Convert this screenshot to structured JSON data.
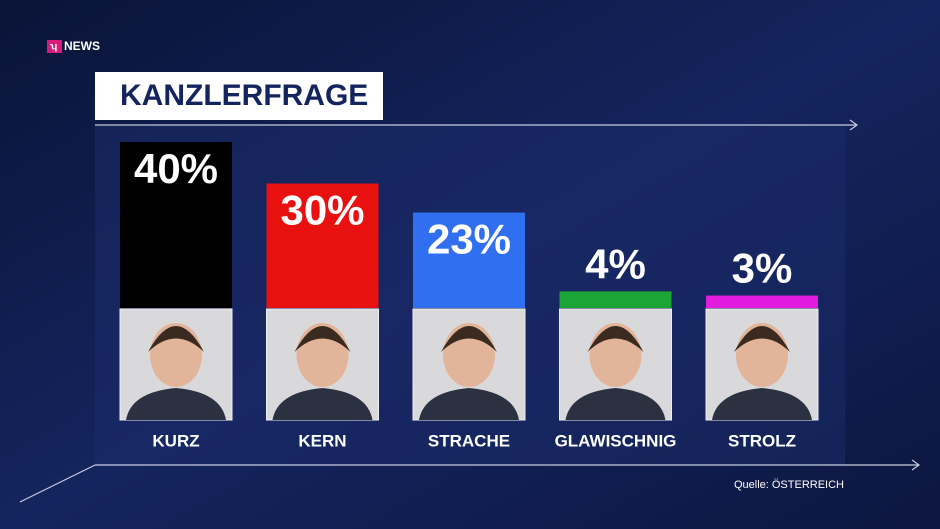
{
  "brand": "NEWS",
  "chart_data": {
    "type": "bar",
    "title": "KANZLERFRAGE",
    "categories": [
      "KURZ",
      "KERN",
      "STRACHE",
      "GLAWISCHNIG",
      "STROLZ"
    ],
    "values": [
      40,
      30,
      23,
      4,
      3
    ],
    "value_labels": [
      "40%",
      "30%",
      "23%",
      "4%",
      "3%"
    ],
    "colors": [
      "#000000",
      "#e8110f",
      "#2f6ff0",
      "#1aa535",
      "#e21be0"
    ],
    "source": "Quelle: ÖSTERREICH"
  }
}
